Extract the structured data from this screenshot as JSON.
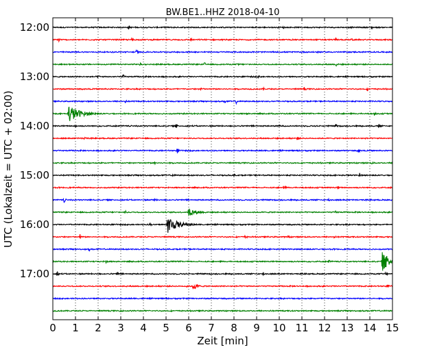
{
  "chart_data": {
    "type": "line",
    "title": "BW.BE1..HHZ 2018-04-10",
    "xlabel": "Zeit  [min]",
    "ylabel": "UTC (Lokalzeit = UTC + 02:00)",
    "xlim": [
      0,
      15
    ],
    "x_ticks": [
      "0",
      "1",
      "2",
      "3",
      "4",
      "5",
      "6",
      "7",
      "8",
      "9",
      "10",
      "11",
      "12",
      "13",
      "14",
      "15"
    ],
    "y_ticks": [
      "12:00",
      "13:00",
      "14:00",
      "15:00",
      "16:00",
      "17:00"
    ],
    "grid": "vertical-dotted",
    "trace_colors": [
      "#000000",
      "#ff0000",
      "#0000ff",
      "#008000"
    ],
    "series": [
      {
        "start": "12:00",
        "events": [
          {
            "t": 3.35,
            "a": 0.5
          },
          {
            "t": 14.05,
            "a": 0.45
          },
          {
            "t": 10.2,
            "a": 0.2
          }
        ]
      },
      {
        "start": "12:15",
        "events": [
          {
            "t": 0.25,
            "a": 0.9
          },
          {
            "t": 3.5,
            "a": 0.4
          },
          {
            "t": 6.1,
            "a": 0.3
          },
          {
            "t": 12.5,
            "a": 0.5
          },
          {
            "t": 13.2,
            "a": 0.3
          }
        ]
      },
      {
        "start": "12:30",
        "events": [
          {
            "t": 3.7,
            "a": 0.55
          },
          {
            "t": 11.0,
            "a": 0.2
          },
          {
            "t": 11.7,
            "a": 0.25
          }
        ]
      },
      {
        "start": "12:45",
        "events": [
          {
            "t": 3.85,
            "a": 0.3
          },
          {
            "t": 6.7,
            "a": 0.4
          },
          {
            "t": 8.2,
            "a": 0.25
          },
          {
            "t": 12.5,
            "a": 0.4
          }
        ]
      },
      {
        "start": "13:00",
        "events": [
          {
            "t": 2.0,
            "a": 0.35
          },
          {
            "t": 3.1,
            "a": 0.5
          },
          {
            "t": 9.1,
            "a": 0.2
          }
        ]
      },
      {
        "start": "13:15",
        "events": [
          {
            "t": 6.55,
            "a": 0.5
          },
          {
            "t": 9.3,
            "a": 0.25
          },
          {
            "t": 11.1,
            "a": 0.35
          },
          {
            "t": 13.9,
            "a": 0.3
          }
        ]
      },
      {
        "start": "13:30",
        "events": [
          {
            "t": 3.2,
            "a": 0.25
          },
          {
            "t": 7.6,
            "a": 0.3
          },
          {
            "t": 8.1,
            "a": 0.4
          }
        ]
      },
      {
        "start": "13:45",
        "events": [
          {
            "t": 0.7,
            "a": 1.9,
            "d": 1.3
          },
          {
            "t": 8.55,
            "a": 0.35
          },
          {
            "t": 14.2,
            "a": 0.3
          }
        ]
      },
      {
        "start": "14:00",
        "events": [
          {
            "t": 5.45,
            "a": 0.45
          },
          {
            "t": 1.0,
            "a": 0.3
          },
          {
            "t": 10.0,
            "a": 0.3
          },
          {
            "t": 12.5,
            "a": 0.35
          },
          {
            "t": 14.4,
            "a": 0.35
          }
        ]
      },
      {
        "start": "14:15",
        "events": [
          {
            "t": 1.4,
            "a": 0.35
          },
          {
            "t": 10.8,
            "a": 0.45
          }
        ]
      },
      {
        "start": "14:30",
        "events": [
          {
            "t": 5.5,
            "a": 0.5
          },
          {
            "t": 13.5,
            "a": 0.45
          }
        ]
      },
      {
        "start": "14:45",
        "events": [
          {
            "t": 4.5,
            "a": 0.4
          },
          {
            "t": 14.1,
            "a": 0.2
          }
        ]
      },
      {
        "start": "15:00",
        "events": [
          {
            "t": 5.3,
            "a": 0.3
          },
          {
            "t": 13.55,
            "a": 0.4
          },
          {
            "t": 8.0,
            "a": 0.2
          }
        ]
      },
      {
        "start": "15:15",
        "events": [
          {
            "t": 10.2,
            "a": 0.45
          },
          {
            "t": 12.6,
            "a": 0.3
          }
        ]
      },
      {
        "start": "15:30",
        "events": [
          {
            "t": 0.5,
            "a": 0.55
          },
          {
            "t": 4.5,
            "a": 0.25
          },
          {
            "t": 12.2,
            "a": 0.3
          }
        ]
      },
      {
        "start": "15:45",
        "events": [
          {
            "t": 6.0,
            "a": 0.9,
            "d": 0.8
          },
          {
            "t": 3.2,
            "a": 0.3
          },
          {
            "t": 12.5,
            "a": 0.35
          }
        ]
      },
      {
        "start": "16:00",
        "events": [
          {
            "t": 5.05,
            "a": 1.9,
            "d": 1.2
          },
          {
            "t": 4.3,
            "a": 0.3
          }
        ]
      },
      {
        "start": "16:15",
        "events": [
          {
            "t": 1.2,
            "a": 0.55
          },
          {
            "t": 8.5,
            "a": 0.3
          },
          {
            "t": 10.4,
            "a": 0.4
          },
          {
            "t": 12.4,
            "a": 0.35
          }
        ]
      },
      {
        "start": "16:30",
        "events": [
          {
            "t": 1.6,
            "a": 0.3
          }
        ]
      },
      {
        "start": "16:45",
        "events": [
          {
            "t": 2.35,
            "a": 0.4
          },
          {
            "t": 12.2,
            "a": 0.3
          },
          {
            "t": 14.55,
            "a": 1.9,
            "d": 1.1
          }
        ]
      },
      {
        "start": "17:00",
        "events": [
          {
            "t": 0.2,
            "a": 0.5
          },
          {
            "t": 2.85,
            "a": 0.5
          },
          {
            "t": 9.3,
            "a": 0.4
          },
          {
            "t": 14.7,
            "a": 0.35
          }
        ]
      },
      {
        "start": "17:15",
        "events": [
          {
            "t": 6.2,
            "a": 0.9,
            "d": 0.4
          },
          {
            "t": 5.9,
            "a": 0.3
          },
          {
            "t": 14.8,
            "a": 0.3
          }
        ]
      },
      {
        "start": "17:30",
        "events": []
      },
      {
        "start": "17:45",
        "events": [
          {
            "t": 3.0,
            "a": 0.15
          }
        ]
      }
    ]
  }
}
